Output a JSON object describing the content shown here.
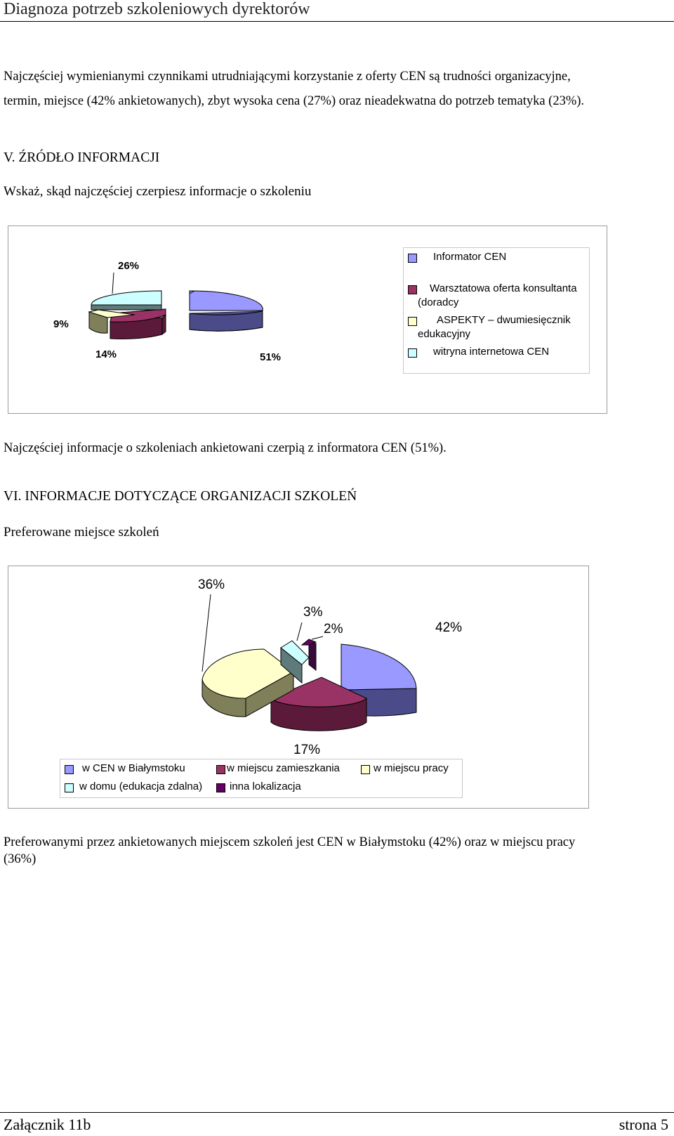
{
  "header": {
    "title": "Diagnoza potrzeb szkoleniowych dyrektorów"
  },
  "intro": {
    "line1": "Najczęściej wymienianymi czynnikami utrudniającymi korzystanie z oferty CEN są trudności organizacyjne,",
    "line2": "termin, miejsce (42% ankietowanych), zbyt wysoka cena (27%) oraz nieadekwatna do potrzeb tematyka (23%)."
  },
  "section5": {
    "heading": "V. ŹRÓDŁO INFORMACJI",
    "question": "Wskaż, skąd najczęściej czerpiesz informacje o szkoleniu",
    "conclusion": "Najczęściej informacje o szkoleniach ankietowani czerpią z informatora CEN (51%)."
  },
  "section6": {
    "heading": "VI. INFORMACJE DOTYCZĄCE ORGANIZACJI SZKOLEŃ",
    "question": "Preferowane miejsce szkoleń",
    "conclusion_line1": "Preferowanymi przez ankietowanych miejscem szkoleń jest CEN w Białymstoku (42%) oraz w miejscu pracy",
    "conclusion_line2": "(36%)"
  },
  "chart_data": [
    {
      "type": "pie",
      "style": "3d-exploded",
      "categories": [
        "Informator CEN",
        "Warsztatowa oferta konsultanta (doradcy",
        "ASPEKTY – dwumiesięcznik edukacyjny",
        "witryna internetowa CEN"
      ],
      "values": [
        51,
        14,
        9,
        26
      ],
      "data_labels": [
        "51%",
        "14%",
        "9%",
        "26%"
      ],
      "legend_lines": [
        [
          "Informator CEN"
        ],
        [
          "Warsztatowa oferta konsultanta",
          "(doradcy"
        ],
        [
          "ASPEKTY – dwumiesięcznik",
          "edukacyjny"
        ],
        [
          "witryna internetowa CEN"
        ]
      ],
      "colors": [
        "#9999ff",
        "#993366",
        "#ffffcc",
        "#ccffff"
      ],
      "legend_position": "right"
    },
    {
      "type": "pie",
      "style": "3d-exploded",
      "categories": [
        "w CEN w Białymstoku",
        "w miejscu zamieszkania",
        "w miejscu pracy",
        "w domu (edukacja zdalna)",
        "inna lokalizacja"
      ],
      "values": [
        42,
        17,
        36,
        3,
        2
      ],
      "data_labels": [
        "42%",
        "17%",
        "36%",
        "3%",
        "2%"
      ],
      "colors": [
        "#9999ff",
        "#993366",
        "#ffffcc",
        "#ccffff",
        "#660066"
      ],
      "legend_position": "bottom"
    }
  ],
  "footer": {
    "left": "Załącznik 11b",
    "right": "strona 5"
  }
}
